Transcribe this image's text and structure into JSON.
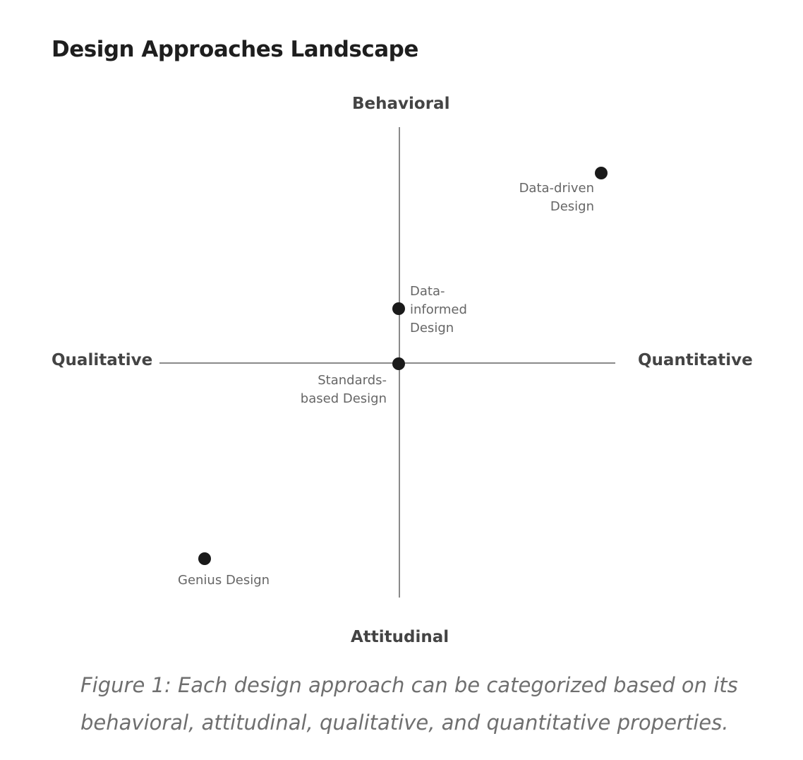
{
  "figure": {
    "title": "Design Approaches Landscape",
    "axes": {
      "top": "Behavioral",
      "bottom": "Attitudinal",
      "left": "Qualitative",
      "right": "Quantitative"
    },
    "points": {
      "data_driven": {
        "line1": "Data-driven",
        "line2": "Design"
      },
      "data_informed": {
        "line1": "Data-",
        "line2": "informed",
        "line3": "Design"
      },
      "standards_based": {
        "line1": "Standards-",
        "line2": "based Design"
      },
      "genius": {
        "line1": "Genius Design"
      }
    },
    "colors": {
      "axis": "#8a8a8a",
      "point": "#1a1a1a"
    }
  },
  "caption": {
    "line1": "Figure 1:  Each design approach can be categorized based on its",
    "line2": "behavioral, attitudinal, qualitative, and quantitative properties."
  }
}
